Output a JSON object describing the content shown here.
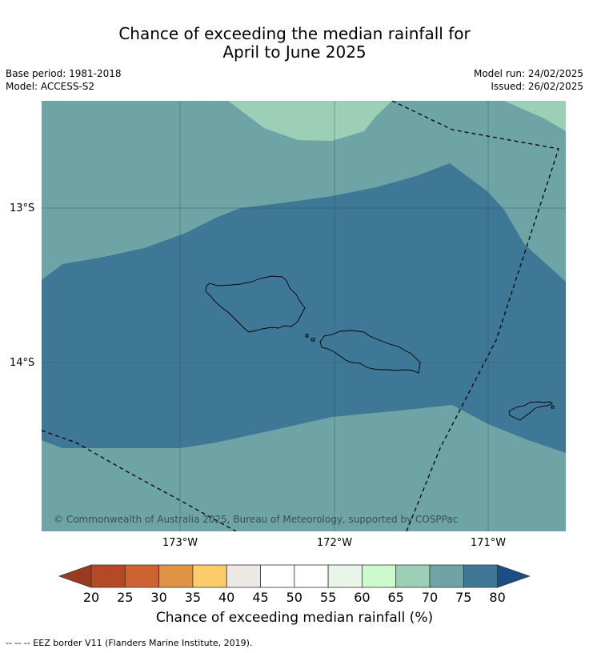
{
  "title_line1": "Chance of exceeding the median rainfall for",
  "title_line2": "April to June 2025",
  "meta": {
    "base_period": "Base period: 1981-2018",
    "model": "Model: ACCESS-S2",
    "model_run": "Model run: 24/02/2025",
    "issued": "Issued: 26/02/2025"
  },
  "lat_labels": [
    "13°S",
    "14°S"
  ],
  "lon_labels": [
    "173°W",
    "172°W",
    "171°W"
  ],
  "copyright": "© Commonwealth of Australia 2025, Bureau of Meteorology, supported by COSPPac",
  "colorbar": {
    "title": "Chance of exceeding median rainfall (%)",
    "ticks": [
      "20",
      "25",
      "30",
      "35",
      "40",
      "45",
      "50",
      "55",
      "60",
      "65",
      "70",
      "75",
      "80"
    ],
    "colors": [
      "#b34a25",
      "#cc6330",
      "#e29446",
      "#fdcc6a",
      "#ece8e4",
      "#ffffff",
      "#ffffff",
      "#e8f5e8",
      "#ccfacc",
      "#9ccfb5",
      "#6ea4a5",
      "#3f7896"
    ],
    "under_color": "#9a3a20",
    "over_color": "#1c4e84"
  },
  "footnote": "--  --  -- EEZ border V11 (Flanders Marine Institute, 2019)."
}
